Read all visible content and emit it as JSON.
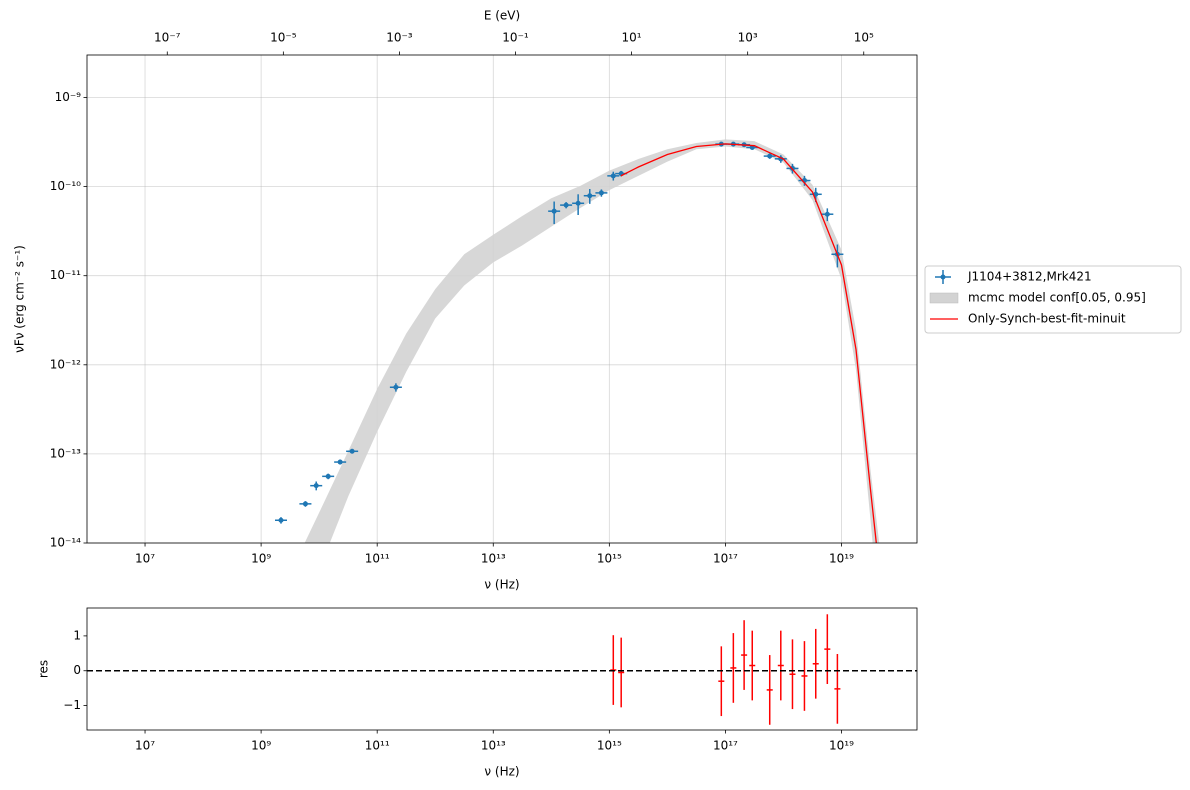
{
  "chart_data": [
    {
      "type": "errorbar",
      "xscale": "log",
      "yscale": "log",
      "grid": true,
      "legend": "outside right",
      "xlabel": "ν  (Hz)",
      "ylabel": "νFν  (erg cm⁻²  s⁻¹)",
      "xlim": [
        1000000.0,
        2e+20
      ],
      "ylim": [
        1e-14,
        3e-09
      ],
      "xticks": [
        {
          "value": 10000000.0,
          "label": "10⁷"
        },
        {
          "value": 1000000000.0,
          "label": "10⁹"
        },
        {
          "value": 100000000000.0,
          "label": "10¹¹"
        },
        {
          "value": 10000000000000.0,
          "label": "10¹³"
        },
        {
          "value": 1000000000000000.0,
          "label": "10¹⁵"
        },
        {
          "value": 1e+17,
          "label": "10¹⁷"
        },
        {
          "value": 1e+19,
          "label": "10¹⁹"
        }
      ],
      "yticks": [
        {
          "value": 1e-14,
          "label": "10⁻¹⁴"
        },
        {
          "value": 1e-13,
          "label": "10⁻¹³"
        },
        {
          "value": 1e-12,
          "label": "10⁻¹²"
        },
        {
          "value": 1e-11,
          "label": "10⁻¹¹"
        },
        {
          "value": 1e-10,
          "label": "10⁻¹⁰"
        },
        {
          "value": 1e-09,
          "label": "10⁻⁹"
        }
      ],
      "top_axis": {
        "label": "E (eV)",
        "xlim": [
          4.14e-09,
          827000.0
        ],
        "xticks": [
          {
            "value": 1e-07,
            "label": "10⁻⁷"
          },
          {
            "value": 1e-05,
            "label": "10⁻⁵"
          },
          {
            "value": 0.001,
            "label": "10⁻³"
          },
          {
            "value": 0.1,
            "label": "10⁻¹"
          },
          {
            "value": 10,
            "label": "10¹"
          },
          {
            "value": 1000,
            "label": "10³"
          },
          {
            "value": 100000,
            "label": "10⁵"
          }
        ]
      },
      "series": [
        {
          "name": "J1104+3812,Mrk421",
          "kind": "errorbar",
          "color": "#1f77b4",
          "x": [
            2200000000.0,
            5800000000.0,
            8900000000.0,
            14300000000.0,
            23000000000.0,
            37000000000.0,
            210000000000.0,
            112000000000000.0,
            180000000000000.0,
            290000000000000.0,
            460000000000000.0,
            730000000000000.0,
            1170000000000000.0,
            1600000000000000.0,
            8.5e+16,
            1.37e+17,
            2.1e+17,
            2.9e+17,
            5.8e+17,
            9e+17,
            1.43e+18,
            2.3e+18,
            3.6e+18,
            5.7e+18,
            8.5e+18
          ],
          "values": [
            1.8e-14,
            2.75e-14,
            4.4e-14,
            5.6e-14,
            8.1e-14,
            1.07e-13,
            5.6e-13,
            5.3e-11,
            6.2e-11,
            6.5e-11,
            7.9e-11,
            8.5e-11,
            1.32e-10,
            1.4e-10,
            3e-10,
            3e-10,
            2.95e-10,
            2.75e-10,
            2.2e-10,
            2.05e-10,
            1.6e-10,
            1.17e-10,
            8.2e-11,
            4.9e-11,
            1.74e-11
          ],
          "yerr": [
            1.5e-15,
            2e-15,
            5e-15,
            4e-15,
            5e-15,
            6e-15,
            6e-14,
            1.5e-11,
            5e-12,
            1.7e-11,
            1.5e-11,
            8e-12,
            1.5e-11,
            1e-11,
            1.5e-11,
            1.5e-11,
            1.5e-11,
            1.5e-11,
            1.5e-11,
            2e-11,
            2e-11,
            1.5e-11,
            1.5e-11,
            8e-12,
            5e-12
          ]
        },
        {
          "name": "mcmc model conf[0.05, 0.95]",
          "kind": "band",
          "color": "#d3d3d3",
          "x": [
            5620000000.0,
            10000000000.0,
            31600000000.0,
            100000000000.0,
            316000000000.0,
            1000000000000.0,
            3160000000000.0,
            10000000000000.0,
            31600000000000.0,
            100000000000000.0,
            316000000000000.0,
            1000000000000000.0,
            3160000000000000.0,
            1e+16,
            3.16e+16,
            1e+17,
            3.16e+17,
            1e+18,
            3.16e+18,
            1e+19,
            1.78e+19,
            3.16e+19,
            4.47e+19
          ],
          "upper": [
            1e-14,
            2.19e-14,
            1.07e-13,
            5.37e-13,
            2.24e-12,
            7.08e-12,
            1.74e-11,
            2.88e-11,
            4.68e-11,
            7.41e-11,
            1.02e-10,
            1.51e-10,
            2.04e-10,
            2.63e-10,
            3.09e-10,
            3.39e-10,
            3.24e-10,
            2.29e-10,
            1.05e-10,
            1.95e-11,
            2.45e-12,
            6.61e-14,
            1e-14
          ],
          "lower": [
            2.5e-15,
            5e-15,
            3.31e-14,
            1.78e-13,
            8.32e-13,
            3.31e-12,
            7.76e-12,
            1.41e-11,
            2.19e-11,
            3.55e-11,
            5.75e-11,
            9.12e-11,
            1.32e-10,
            1.91e-10,
            2.63e-10,
            2.82e-10,
            2.63e-10,
            1.86e-10,
            7.08e-11,
            9.12e-12,
            8.71e-13,
            1.82e-14,
            1.58e-15
          ]
        },
        {
          "name": "Only-Synch-best-fit-minuit",
          "kind": "line",
          "color": "#ff0000",
          "x": [
            1580000000000000.0,
            3160000000000000.0,
            1e+16,
            3.16e+16,
            1e+17,
            3.16e+17,
            1e+18,
            3.16e+18,
            1e+19,
            1.78e+19,
            3.16e+19,
            3.98e+19
          ],
          "values": [
            1.32e-10,
            1.66e-10,
            2.29e-10,
            2.82e-10,
            3.02e-10,
            2.88e-10,
            2.04e-10,
            8.7e-11,
            1.32e-11,
            1.48e-12,
            3.98e-14,
            1e-14
          ]
        }
      ]
    },
    {
      "type": "errorbar",
      "xscale": "log",
      "grid": false,
      "xlabel": "ν  (Hz)",
      "ylabel": "res",
      "xlim": [
        1000000.0,
        2e+20
      ],
      "ylim": [
        -1.7,
        1.8
      ],
      "xticks": [
        {
          "value": 10000000.0,
          "label": "10⁷"
        },
        {
          "value": 1000000000.0,
          "label": "10⁹"
        },
        {
          "value": 100000000000.0,
          "label": "10¹¹"
        },
        {
          "value": 10000000000000.0,
          "label": "10¹³"
        },
        {
          "value": 1000000000000000.0,
          "label": "10¹⁵"
        },
        {
          "value": 1e+17,
          "label": "10¹⁷"
        },
        {
          "value": 1e+19,
          "label": "10¹⁹"
        }
      ],
      "yticks": [
        {
          "value": -1,
          "label": "−1"
        },
        0,
        1
      ],
      "hline": 0,
      "series": [
        {
          "kind": "errorbar",
          "color": "#ff0000",
          "x": [
            1170000000000000.0,
            1600000000000000.0,
            8.5e+16,
            1.37e+17,
            2.1e+17,
            2.9e+17,
            5.8e+17,
            9e+17,
            1.43e+18,
            2.3e+18,
            3.6e+18,
            5.7e+18,
            8.5e+18
          ],
          "values": [
            0.02,
            -0.05,
            -0.3,
            0.08,
            0.45,
            0.15,
            -0.55,
            0.15,
            -0.1,
            -0.15,
            0.2,
            0.62,
            -0.52
          ],
          "yerr": [
            1,
            1,
            1,
            1,
            1,
            1,
            1,
            1,
            1,
            1,
            1,
            1,
            1
          ]
        }
      ]
    }
  ]
}
